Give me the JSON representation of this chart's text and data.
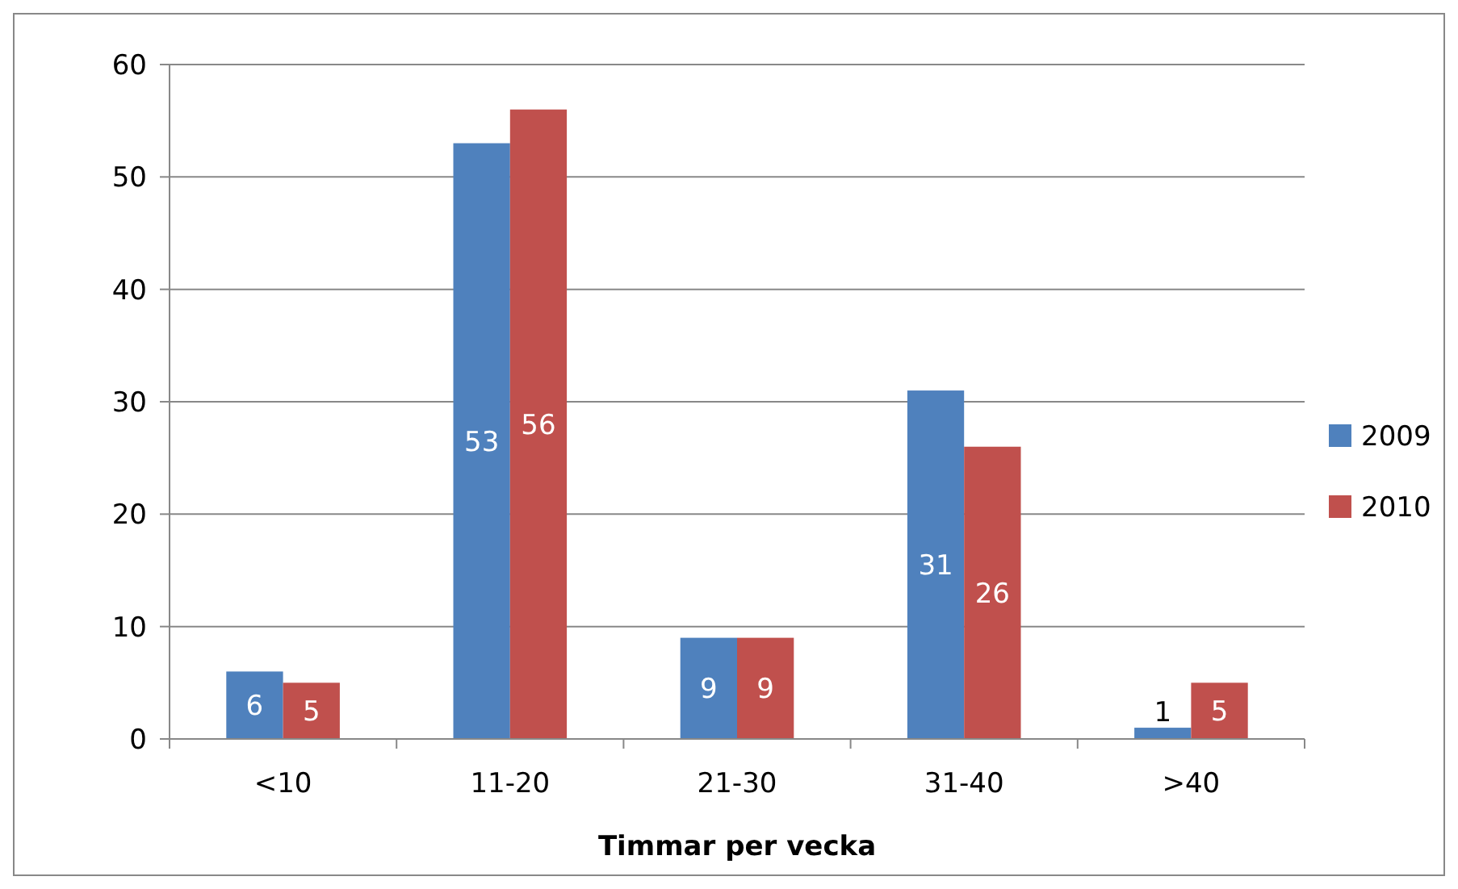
{
  "chart_data": {
    "type": "bar",
    "xlabel": "Timmar per vecka",
    "categories": [
      "<10",
      "11-20",
      "21-30",
      "31-40",
      ">40"
    ],
    "series": [
      {
        "name": "2009",
        "color": "#4f81bd",
        "values": [
          6,
          53,
          9,
          31,
          1
        ]
      },
      {
        "name": "2010",
        "color": "#c0504d",
        "values": [
          5,
          56,
          9,
          26,
          5
        ]
      }
    ],
    "ylim": [
      0,
      60
    ],
    "yticks": [
      0,
      10,
      20,
      30,
      40,
      50,
      60
    ],
    "grid": "y",
    "legend": "right",
    "data_labels": true
  }
}
